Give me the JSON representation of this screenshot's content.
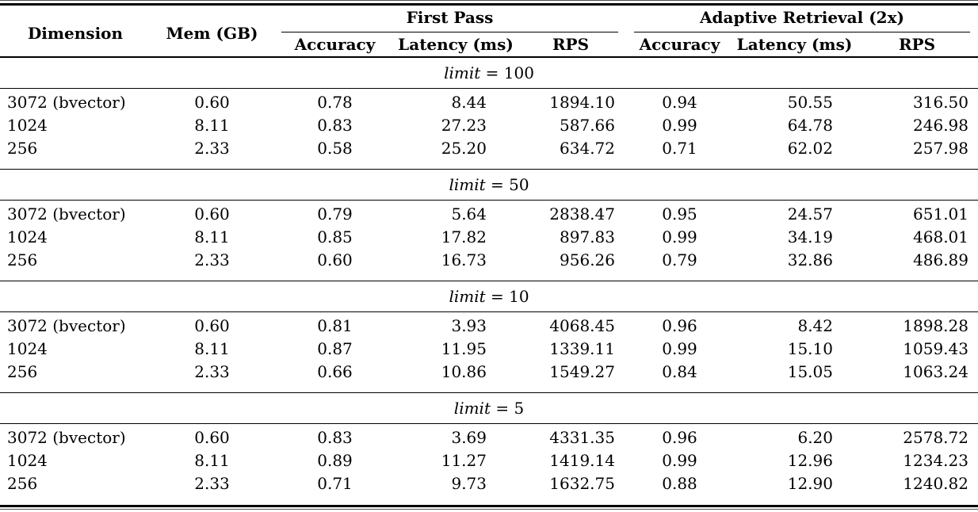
{
  "table": {
    "header": {
      "dimension": "Dimension",
      "mem": "Mem (GB)",
      "first_pass": "First Pass",
      "adaptive": "Adaptive Retrieval (2x)",
      "sub": [
        "Accuracy",
        "Latency (ms)",
        "RPS",
        "Accuracy",
        "Latency (ms)",
        "RPS"
      ]
    },
    "sections": [
      {
        "limit_word": "limit",
        "limit_eq": "= 100",
        "rows": [
          [
            "3072 (bvector)",
            "0.60",
            "0.78",
            "8.44",
            "1894.10",
            "0.94",
            "50.55",
            "316.50"
          ],
          [
            "1024",
            "8.11",
            "0.83",
            "27.23",
            "587.66",
            "0.99",
            "64.78",
            "246.98"
          ],
          [
            "256",
            "2.33",
            "0.58",
            "25.20",
            "634.72",
            "0.71",
            "62.02",
            "257.98"
          ]
        ]
      },
      {
        "limit_word": "limit",
        "limit_eq": "= 50",
        "rows": [
          [
            "3072 (bvector)",
            "0.60",
            "0.79",
            "5.64",
            "2838.47",
            "0.95",
            "24.57",
            "651.01"
          ],
          [
            "1024",
            "8.11",
            "0.85",
            "17.82",
            "897.83",
            "0.99",
            "34.19",
            "468.01"
          ],
          [
            "256",
            "2.33",
            "0.60",
            "16.73",
            "956.26",
            "0.79",
            "32.86",
            "486.89"
          ]
        ]
      },
      {
        "limit_word": "limit",
        "limit_eq": "= 10",
        "rows": [
          [
            "3072 (bvector)",
            "0.60",
            "0.81",
            "3.93",
            "4068.45",
            "0.96",
            "8.42",
            "1898.28"
          ],
          [
            "1024",
            "8.11",
            "0.87",
            "11.95",
            "1339.11",
            "0.99",
            "15.10",
            "1059.43"
          ],
          [
            "256",
            "2.33",
            "0.66",
            "10.86",
            "1549.27",
            "0.84",
            "15.05",
            "1063.24"
          ]
        ]
      },
      {
        "limit_word": "limit",
        "limit_eq": "= 5",
        "rows": [
          [
            "3072 (bvector)",
            "0.60",
            "0.83",
            "3.69",
            "4331.35",
            "0.96",
            "6.20",
            "2578.72"
          ],
          [
            "1024",
            "8.11",
            "0.89",
            "11.27",
            "1419.14",
            "0.99",
            "12.96",
            "1234.23"
          ],
          [
            "256",
            "2.33",
            "0.71",
            "9.73",
            "1632.75",
            "0.88",
            "12.90",
            "1240.82"
          ]
        ]
      }
    ]
  }
}
